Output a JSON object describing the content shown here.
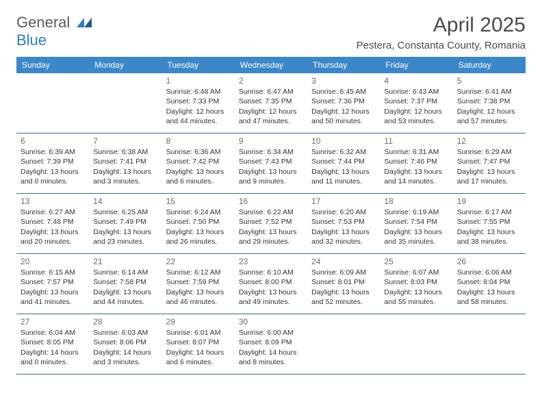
{
  "logo": {
    "text1": "General",
    "text2": "Blue"
  },
  "title": "April 2025",
  "location": "Pestera, Constanta County, Romania",
  "weekdays": [
    "Sunday",
    "Monday",
    "Tuesday",
    "Wednesday",
    "Thursday",
    "Friday",
    "Saturday"
  ],
  "colors": {
    "header_bg": "#3b87c8",
    "header_text": "#ffffff",
    "cell_border": "#3b6a9a",
    "text": "#333333",
    "daynum": "#6a6a6a",
    "logo_gray": "#5a5a5a",
    "logo_blue": "#2d7dc3"
  },
  "days": {
    "1": {
      "sunrise": "Sunrise: 6:48 AM",
      "sunset": "Sunset: 7:33 PM",
      "daylight": "Daylight: 12 hours and 44 minutes."
    },
    "2": {
      "sunrise": "Sunrise: 6:47 AM",
      "sunset": "Sunset: 7:35 PM",
      "daylight": "Daylight: 12 hours and 47 minutes."
    },
    "3": {
      "sunrise": "Sunrise: 6:45 AM",
      "sunset": "Sunset: 7:36 PM",
      "daylight": "Daylight: 12 hours and 50 minutes."
    },
    "4": {
      "sunrise": "Sunrise: 6:43 AM",
      "sunset": "Sunset: 7:37 PM",
      "daylight": "Daylight: 12 hours and 53 minutes."
    },
    "5": {
      "sunrise": "Sunrise: 6:41 AM",
      "sunset": "Sunset: 7:38 PM",
      "daylight": "Daylight: 12 hours and 57 minutes."
    },
    "6": {
      "sunrise": "Sunrise: 6:39 AM",
      "sunset": "Sunset: 7:39 PM",
      "daylight": "Daylight: 13 hours and 0 minutes."
    },
    "7": {
      "sunrise": "Sunrise: 6:38 AM",
      "sunset": "Sunset: 7:41 PM",
      "daylight": "Daylight: 13 hours and 3 minutes."
    },
    "8": {
      "sunrise": "Sunrise: 6:36 AM",
      "sunset": "Sunset: 7:42 PM",
      "daylight": "Daylight: 13 hours and 6 minutes."
    },
    "9": {
      "sunrise": "Sunrise: 6:34 AM",
      "sunset": "Sunset: 7:43 PM",
      "daylight": "Daylight: 13 hours and 9 minutes."
    },
    "10": {
      "sunrise": "Sunrise: 6:32 AM",
      "sunset": "Sunset: 7:44 PM",
      "daylight": "Daylight: 13 hours and 11 minutes."
    },
    "11": {
      "sunrise": "Sunrise: 6:31 AM",
      "sunset": "Sunset: 7:46 PM",
      "daylight": "Daylight: 13 hours and 14 minutes."
    },
    "12": {
      "sunrise": "Sunrise: 6:29 AM",
      "sunset": "Sunset: 7:47 PM",
      "daylight": "Daylight: 13 hours and 17 minutes."
    },
    "13": {
      "sunrise": "Sunrise: 6:27 AM",
      "sunset": "Sunset: 7:48 PM",
      "daylight": "Daylight: 13 hours and 20 minutes."
    },
    "14": {
      "sunrise": "Sunrise: 6:25 AM",
      "sunset": "Sunset: 7:49 PM",
      "daylight": "Daylight: 13 hours and 23 minutes."
    },
    "15": {
      "sunrise": "Sunrise: 6:24 AM",
      "sunset": "Sunset: 7:50 PM",
      "daylight": "Daylight: 13 hours and 26 minutes."
    },
    "16": {
      "sunrise": "Sunrise: 6:22 AM",
      "sunset": "Sunset: 7:52 PM",
      "daylight": "Daylight: 13 hours and 29 minutes."
    },
    "17": {
      "sunrise": "Sunrise: 6:20 AM",
      "sunset": "Sunset: 7:53 PM",
      "daylight": "Daylight: 13 hours and 32 minutes."
    },
    "18": {
      "sunrise": "Sunrise: 6:19 AM",
      "sunset": "Sunset: 7:54 PM",
      "daylight": "Daylight: 13 hours and 35 minutes."
    },
    "19": {
      "sunrise": "Sunrise: 6:17 AM",
      "sunset": "Sunset: 7:55 PM",
      "daylight": "Daylight: 13 hours and 38 minutes."
    },
    "20": {
      "sunrise": "Sunrise: 6:15 AM",
      "sunset": "Sunset: 7:57 PM",
      "daylight": "Daylight: 13 hours and 41 minutes."
    },
    "21": {
      "sunrise": "Sunrise: 6:14 AM",
      "sunset": "Sunset: 7:58 PM",
      "daylight": "Daylight: 13 hours and 44 minutes."
    },
    "22": {
      "sunrise": "Sunrise: 6:12 AM",
      "sunset": "Sunset: 7:59 PM",
      "daylight": "Daylight: 13 hours and 46 minutes."
    },
    "23": {
      "sunrise": "Sunrise: 6:10 AM",
      "sunset": "Sunset: 8:00 PM",
      "daylight": "Daylight: 13 hours and 49 minutes."
    },
    "24": {
      "sunrise": "Sunrise: 6:09 AM",
      "sunset": "Sunset: 8:01 PM",
      "daylight": "Daylight: 13 hours and 52 minutes."
    },
    "25": {
      "sunrise": "Sunrise: 6:07 AM",
      "sunset": "Sunset: 8:03 PM",
      "daylight": "Daylight: 13 hours and 55 minutes."
    },
    "26": {
      "sunrise": "Sunrise: 6:06 AM",
      "sunset": "Sunset: 8:04 PM",
      "daylight": "Daylight: 13 hours and 58 minutes."
    },
    "27": {
      "sunrise": "Sunrise: 6:04 AM",
      "sunset": "Sunset: 8:05 PM",
      "daylight": "Daylight: 14 hours and 0 minutes."
    },
    "28": {
      "sunrise": "Sunrise: 6:03 AM",
      "sunset": "Sunset: 8:06 PM",
      "daylight": "Daylight: 14 hours and 3 minutes."
    },
    "29": {
      "sunrise": "Sunrise: 6:01 AM",
      "sunset": "Sunset: 8:07 PM",
      "daylight": "Daylight: 14 hours and 6 minutes."
    },
    "30": {
      "sunrise": "Sunrise: 6:00 AM",
      "sunset": "Sunset: 8:09 PM",
      "daylight": "Daylight: 14 hours and 8 minutes."
    }
  },
  "layout": [
    [
      null,
      null,
      1,
      2,
      3,
      4,
      5
    ],
    [
      6,
      7,
      8,
      9,
      10,
      11,
      12
    ],
    [
      13,
      14,
      15,
      16,
      17,
      18,
      19
    ],
    [
      20,
      21,
      22,
      23,
      24,
      25,
      26
    ],
    [
      27,
      28,
      29,
      30,
      null,
      null,
      null
    ]
  ]
}
